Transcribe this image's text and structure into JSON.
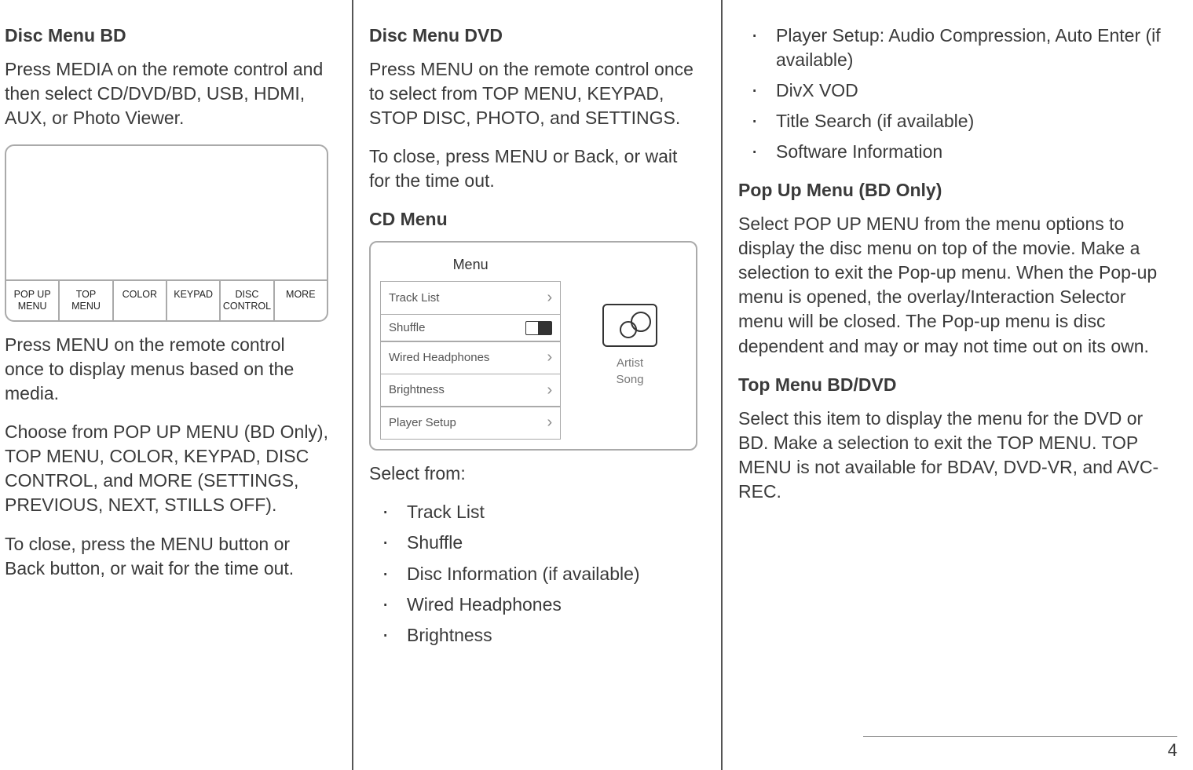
{
  "page_number": "4",
  "col1": {
    "h1": "Disc Menu BD",
    "p1": "Press MEDIA on the remote control and then select CD/DVD/BD, USB, HDMI, AUX, or Photo Viewer.",
    "fig1_cells": [
      "POP UP\nMENU",
      "TOP\nMENU",
      "COLOR",
      "KEYPAD",
      "DISC\nCONTROL",
      "MORE"
    ],
    "p2": "Press MENU on the remote control once to display menus based on the media.",
    "p3": "Choose from POP UP MENU (BD Only), TOP MENU, COLOR, KEYPAD, DISC CONTROL, and MORE (SETTINGS, PREVIOUS, NEXT, STILLS OFF).",
    "p4": "To close, press the MENU button or Back button, or wait for the time out."
  },
  "col2": {
    "h1": "Disc Menu DVD",
    "p1": "Press MENU on the remote control once to select from TOP MENU, KEYPAD, STOP DISC, PHOTO, and SETTINGS.",
    "p2": "To close, press MENU or Back, or wait for the time out.",
    "h2": "CD Menu",
    "fig2": {
      "title": "Menu",
      "items": [
        {
          "label": "Track List",
          "glyph": "chev"
        },
        {
          "label": "Shuffle",
          "glyph": "toggle"
        },
        {
          "label": "Wired Headphones",
          "glyph": "chev"
        },
        {
          "label": "Brightness",
          "glyph": "chev"
        },
        {
          "label": "Player Setup",
          "glyph": "chev"
        }
      ],
      "meta1": "Artist",
      "meta2": "Song"
    },
    "p3": "Select from:",
    "list": [
      "Track List",
      "Shuffle",
      "Disc Information (if available)",
      "Wired Headphones",
      "Brightness"
    ]
  },
  "col3": {
    "list_top": [
      "Player Setup: Audio Compression, Auto Enter (if available)",
      "DivX VOD",
      "Title Search (if available)",
      "Software Information"
    ],
    "h1": "Pop Up Menu (BD Only)",
    "p1": "Select POP UP MENU from the menu options to display the disc menu on top of the movie. Make a selection to exit the Pop-up menu. When the Pop-up menu is opened, the overlay/Interaction Selector menu will be closed. The Pop-up menu is disc dependent and may or may not time out on its own.",
    "h2": "Top Menu BD/DVD",
    "p2": "Select this item to display the menu for the DVD or BD. Make a selection to exit the TOP MENU. TOP MENU is not available for BDAV, DVD-VR, and AVC-REC."
  }
}
